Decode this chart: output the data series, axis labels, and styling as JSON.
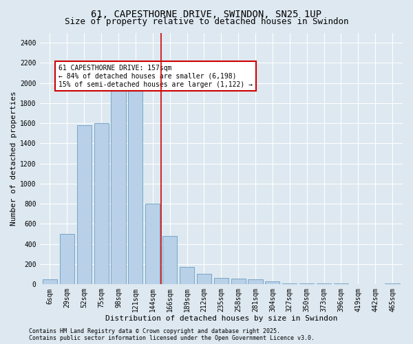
{
  "title": "61, CAPESTHORNE DRIVE, SWINDON, SN25 1UP",
  "subtitle": "Size of property relative to detached houses in Swindon",
  "xlabel": "Distribution of detached houses by size in Swindon",
  "ylabel": "Number of detached properties",
  "categories": [
    "6sqm",
    "29sqm",
    "52sqm",
    "75sqm",
    "98sqm",
    "121sqm",
    "144sqm",
    "166sqm",
    "189sqm",
    "212sqm",
    "235sqm",
    "258sqm",
    "281sqm",
    "304sqm",
    "327sqm",
    "350sqm",
    "373sqm",
    "396sqm",
    "419sqm",
    "442sqm",
    "465sqm"
  ],
  "values": [
    50,
    500,
    1580,
    1600,
    1950,
    1960,
    800,
    480,
    170,
    105,
    65,
    55,
    50,
    30,
    10,
    8,
    5,
    5,
    0,
    0,
    8
  ],
  "bar_color": "#b8d0e8",
  "bar_edge_color": "#6a9ec0",
  "vline_color": "#cc0000",
  "vline_x_index": 6.5,
  "annotation_box_text": "61 CAPESTHORNE DRIVE: 157sqm\n← 84% of detached houses are smaller (6,198)\n15% of semi-detached houses are larger (1,122) →",
  "annotation_box_edgecolor": "#cc0000",
  "annotation_box_facecolor": "white",
  "footnote": "Contains HM Land Registry data © Crown copyright and database right 2025.\nContains public sector information licensed under the Open Government Licence v3.0.",
  "background_color": "#dde8f0",
  "ylim": [
    0,
    2500
  ],
  "yticks": [
    0,
    200,
    400,
    600,
    800,
    1000,
    1200,
    1400,
    1600,
    1800,
    2000,
    2200,
    2400
  ],
  "title_fontsize": 10,
  "subtitle_fontsize": 9,
  "axis_label_fontsize": 8,
  "tick_fontsize": 7,
  "annotation_fontsize": 7,
  "footnote_fontsize": 6
}
